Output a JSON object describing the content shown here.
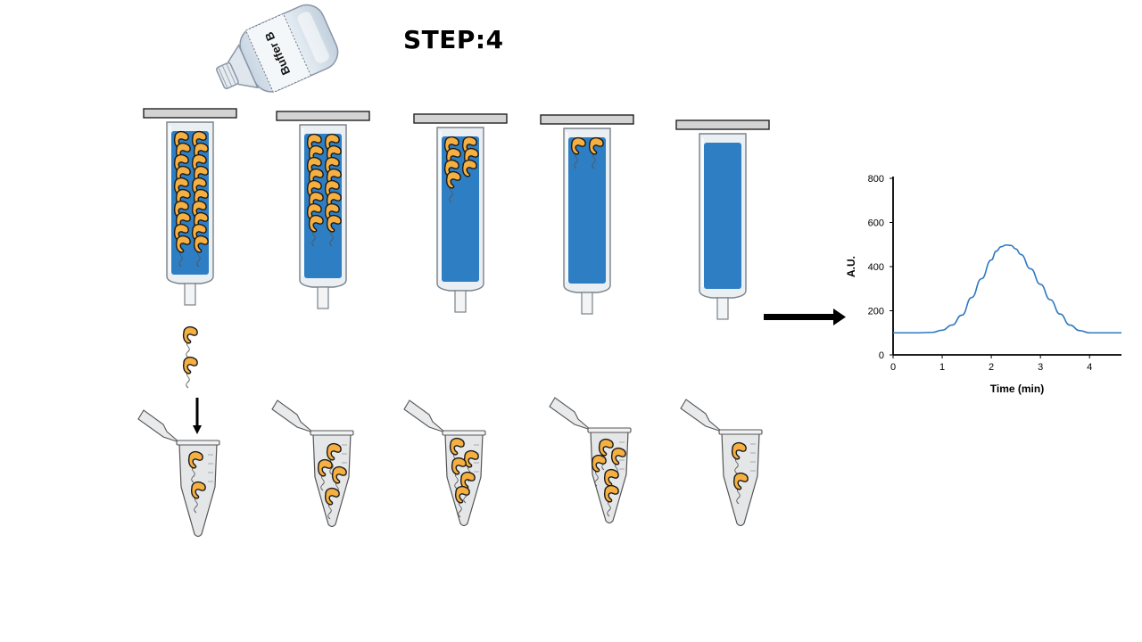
{
  "step_title": "STEP:4",
  "bottle_label": "Buffer B",
  "colors": {
    "resin": "#2e7ec4",
    "column_glass": "#e9eff3",
    "column_outline": "#7a8187",
    "plunger": "#d3d3d3",
    "particle_fill": "#f5b041",
    "particle_outline": "#1a1a1a",
    "tube_fill": "#e4e6e8",
    "chart_line": "#2e78c0",
    "arrow": "#000000"
  },
  "icons": [
    "bottle-icon",
    "column-icon",
    "particle-icon",
    "tube-icon",
    "arrow-icon"
  ],
  "columns": [
    {
      "particles_in_column": 20,
      "particles_eluting": 2,
      "particles_in_tube": 2
    },
    {
      "particles_in_column": 16,
      "particles_eluting": 0,
      "particles_in_tube": 4
    },
    {
      "particles_in_column": 7,
      "particles_eluting": 0,
      "particles_in_tube": 5
    },
    {
      "particles_in_column": 2,
      "particles_eluting": 0,
      "particles_in_tube": 5
    },
    {
      "particles_in_column": 0,
      "particles_eluting": 0,
      "particles_in_tube": 2
    }
  ],
  "chart_data": {
    "type": "line",
    "title": "",
    "xlabel": "Time (min)",
    "ylabel": "A.U.",
    "xlim": [
      0,
      4.65
    ],
    "ylim": [
      0,
      800
    ],
    "xticks": [
      "0",
      "1",
      "2",
      "3",
      "4"
    ],
    "yticks": [
      "0",
      "200",
      "400",
      "600",
      "800"
    ],
    "grid": false,
    "series": [
      {
        "x": [
          0,
          0.5,
          0.8,
          1.0,
          1.2,
          1.4,
          1.6,
          1.8,
          2.0,
          2.1,
          2.2,
          2.3,
          2.4,
          2.5,
          2.6,
          2.8,
          3.0,
          3.2,
          3.4,
          3.6,
          3.8,
          4.0,
          4.3,
          4.65
        ],
        "y": [
          100,
          100,
          102,
          112,
          135,
          180,
          260,
          345,
          430,
          470,
          490,
          498,
          496,
          480,
          455,
          390,
          320,
          250,
          185,
          135,
          110,
          100,
          100,
          100
        ]
      }
    ]
  }
}
